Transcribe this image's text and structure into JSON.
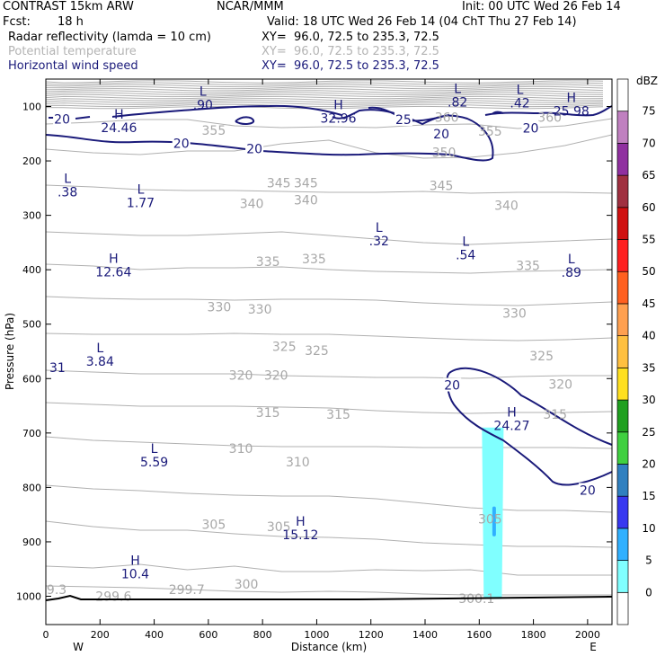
{
  "header": {
    "model": "CONTRAST 15km ARW",
    "center": "NCAR/MMM",
    "init": "Init: 00 UTC Wed 26 Feb 14",
    "fcst_label": "Fcst:",
    "fcst_value": "18 h",
    "valid": "Valid: 18 UTC Wed 26 Feb 14 (04 ChT Thu 27 Feb 14)",
    "fields": [
      {
        "name": "Radar reflectivity (lamda = 10 cm)",
        "xy": "XY=  96.0, 72.5 to 235.3, 72.5",
        "color": "#000000"
      },
      {
        "name": "Potential temperature",
        "xy": "XY=  96.0, 72.5 to 235.3, 72.5",
        "color": "#b4b4b4"
      },
      {
        "name": "Horizontal wind speed",
        "xy": "XY=  96.0, 72.5 to 235.3, 72.5",
        "color": "#1a1a7a"
      }
    ]
  },
  "chart_data": {
    "type": "cross-section contour",
    "xlabel": "Distance (km)",
    "ylabel": "Pressure (hPa)",
    "x_ticks": [
      0,
      200,
      400,
      600,
      800,
      1000,
      1200,
      1400,
      1600,
      1800,
      2000
    ],
    "y_ticks": [
      100,
      200,
      300,
      400,
      500,
      600,
      700,
      800,
      900,
      1000
    ],
    "xlim": [
      0,
      2090
    ],
    "x_ends": {
      "left": "W",
      "right": "E"
    },
    "colorbar": {
      "unit": "dBZ",
      "levels": [
        0,
        5,
        10,
        15,
        20,
        25,
        30,
        35,
        40,
        45,
        50,
        55,
        60,
        65,
        70,
        75
      ],
      "colors": [
        "#ffffff",
        "#80ffff",
        "#30b0ff",
        "#3838f0",
        "#3080c0",
        "#40d040",
        "#20a020",
        "#ffe020",
        "#ffc040",
        "#ffa050",
        "#ff6020",
        "#ff2020",
        "#d01010",
        "#a03040",
        "#9030a0",
        "#c080c0",
        "#ffffff"
      ]
    },
    "theta_labels": [
      {
        "text": "355",
        "x": 620,
        "p": 144
      },
      {
        "text": "360",
        "x": 1480,
        "p": 120
      },
      {
        "text": "360",
        "x": 1860,
        "p": 120
      },
      {
        "text": "355",
        "x": 1640,
        "p": 145
      },
      {
        "text": "350",
        "x": 1470,
        "p": 184
      },
      {
        "text": "345",
        "x": 860,
        "p": 240
      },
      {
        "text": "345",
        "x": 960,
        "p": 240
      },
      {
        "text": "345",
        "x": 1460,
        "p": 245
      },
      {
        "text": "340",
        "x": 760,
        "p": 278
      },
      {
        "text": "340",
        "x": 960,
        "p": 272
      },
      {
        "text": "340",
        "x": 1700,
        "p": 282
      },
      {
        "text": "335",
        "x": 820,
        "p": 385
      },
      {
        "text": "335",
        "x": 990,
        "p": 380
      },
      {
        "text": "335",
        "x": 1780,
        "p": 392
      },
      {
        "text": "330",
        "x": 640,
        "p": 468
      },
      {
        "text": "330",
        "x": 790,
        "p": 472
      },
      {
        "text": "330",
        "x": 1730,
        "p": 480
      },
      {
        "text": "325",
        "x": 880,
        "p": 541
      },
      {
        "text": "325",
        "x": 1000,
        "p": 548
      },
      {
        "text": "325",
        "x": 1830,
        "p": 558
      },
      {
        "text": "320",
        "x": 720,
        "p": 594
      },
      {
        "text": "320",
        "x": 850,
        "p": 594
      },
      {
        "text": "320",
        "x": 1900,
        "p": 610
      },
      {
        "text": "315",
        "x": 820,
        "p": 662
      },
      {
        "text": "315",
        "x": 1080,
        "p": 666
      },
      {
        "text": "315",
        "x": 1880,
        "p": 666
      },
      {
        "text": "310",
        "x": 720,
        "p": 728
      },
      {
        "text": "310",
        "x": 930,
        "p": 753
      },
      {
        "text": "305",
        "x": 620,
        "p": 868
      },
      {
        "text": "305",
        "x": 860,
        "p": 872
      },
      {
        "text": "305",
        "x": 1640,
        "p": 858
      },
      {
        "text": "300",
        "x": 740,
        "p": 978
      },
      {
        "text": "9.3",
        "x": 40,
        "p": 988
      },
      {
        "text": "299.6",
        "x": 250,
        "p": 1000
      },
      {
        "text": "299.7",
        "x": 520,
        "p": 988
      },
      {
        "text": "300.1",
        "x": 1590,
        "p": 1004
      }
    ],
    "wind_labels": [
      {
        "text": "20",
        "x": 60,
        "p": 123
      },
      {
        "text": "25",
        "x": 1320,
        "p": 124
      },
      {
        "text": "20",
        "x": 1460,
        "p": 150
      },
      {
        "text": "20",
        "x": 1790,
        "p": 140
      },
      {
        "text": "20",
        "x": 500,
        "p": 168
      },
      {
        "text": "20",
        "x": 770,
        "p": 178
      },
      {
        "text": "20",
        "x": 1500,
        "p": 612
      },
      {
        "text": "20",
        "x": 2000,
        "p": 805
      }
    ],
    "extrema": [
      {
        "letter": "L",
        "value": ".90",
        "x": 580,
        "p": 80
      },
      {
        "letter": "H",
        "value": "32.96",
        "x": 1080,
        "p": 105
      },
      {
        "letter": "L",
        "value": ".82",
        "x": 1520,
        "p": 75
      },
      {
        "letter": "L",
        "value": ".42",
        "x": 1750,
        "p": 77
      },
      {
        "letter": "H",
        "value": "25.98",
        "x": 1940,
        "p": 92
      },
      {
        "letter": "H",
        "value": "24.46",
        "x": 270,
        "p": 122
      },
      {
        "letter": "L",
        "value": ".38",
        "x": 80,
        "p": 240
      },
      {
        "letter": "L",
        "value": "1.77",
        "x": 350,
        "p": 260
      },
      {
        "letter": "L",
        "value": ".32",
        "x": 1230,
        "p": 330
      },
      {
        "letter": "L",
        "value": ".54",
        "x": 1550,
        "p": 356
      },
      {
        "letter": "H",
        "value": "12.64",
        "x": 250,
        "p": 387
      },
      {
        "letter": "L",
        "value": ".89",
        "x": 1940,
        "p": 388
      },
      {
        "letter": "L",
        "value": "3.84",
        "x": 200,
        "p": 552
      },
      {
        "letter": "H",
        "value": "24.27",
        "x": 1720,
        "p": 670
      },
      {
        "letter": "L",
        "value": "5.59",
        "x": 400,
        "p": 737
      },
      {
        "letter": "H",
        "value": "15.12",
        "x": 940,
        "p": 870
      },
      {
        "letter": "H",
        "value": "10.4",
        "x": 330,
        "p": 942
      }
    ],
    "edge_fragments": [
      {
        "text": "31",
        "x": 10,
        "p": 580
      }
    ],
    "reflectivity_region": {
      "x_range": [
        1610,
        1690
      ],
      "p_range": [
        690,
        1005
      ],
      "dbz": 5,
      "core_dbz": 10,
      "core_x": 1655,
      "core_p": [
        835,
        890
      ]
    }
  }
}
